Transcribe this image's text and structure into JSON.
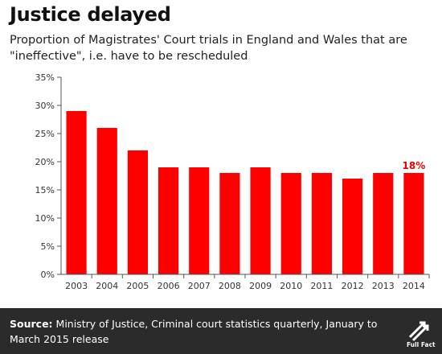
{
  "header": {
    "title": "Justice delayed",
    "subtitle": "Proportion of Magistrates' Court trials in England and Wales that are \"ineffective\", i.e. have to be rescheduled"
  },
  "footer": {
    "source_label": "Source:",
    "source_text": "Ministry of Justice, Criminal court statistics quarterly, January to March 2015 release",
    "logo_text": "Full Fact"
  },
  "colors": {
    "bar": "#ff0000",
    "annotation": "#ee0000",
    "footer_bg": "#2b2b2b"
  },
  "chart_data": {
    "type": "bar",
    "categories": [
      "2003",
      "2004",
      "2005",
      "2006",
      "2007",
      "2008",
      "2009",
      "2010",
      "2011",
      "2012",
      "2013",
      "2014"
    ],
    "values": [
      29,
      26,
      22,
      19,
      19,
      18,
      19,
      18,
      18,
      17,
      18,
      18
    ],
    "ylim": [
      0,
      35
    ],
    "yticks": [
      0,
      5,
      10,
      15,
      20,
      25,
      30,
      35
    ],
    "ytick_labels": [
      "0%",
      "5%",
      "10%",
      "15%",
      "20%",
      "25%",
      "30%",
      "35%"
    ],
    "grid": false,
    "annotations": [
      {
        "category": "2014",
        "text": "18%"
      }
    ]
  }
}
